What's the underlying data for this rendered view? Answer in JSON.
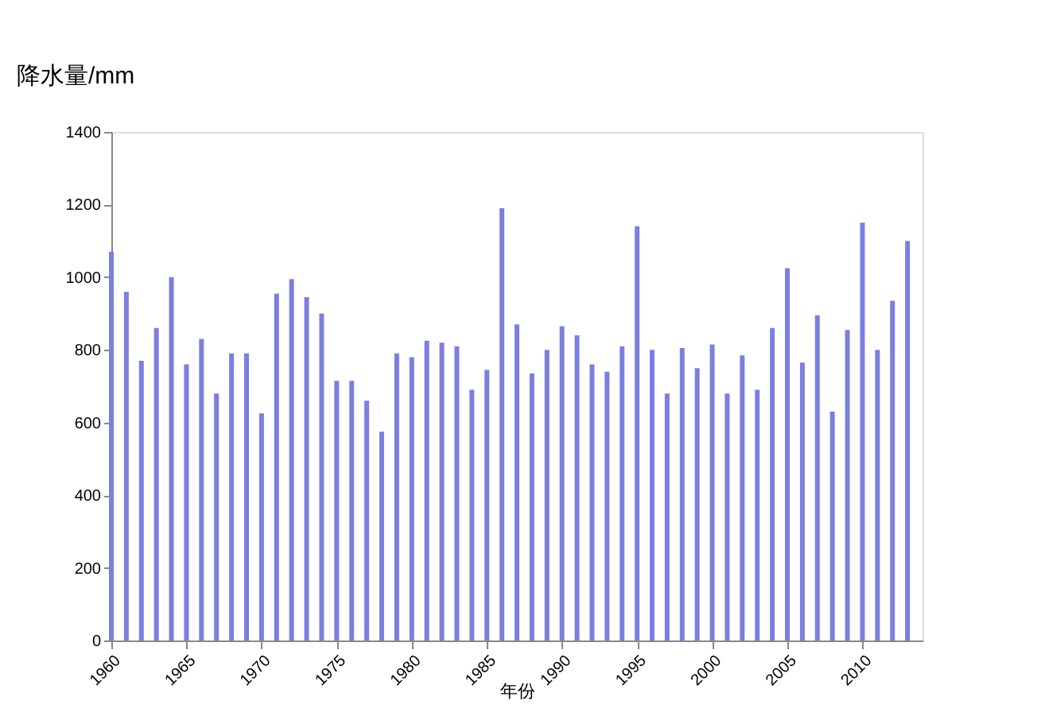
{
  "chart_data": {
    "type": "bar",
    "xlabel": "年份",
    "ylabel": "降水量/mm",
    "color": "#7b7fe0",
    "x": [
      1960,
      1961,
      1962,
      1963,
      1964,
      1965,
      1966,
      1967,
      1968,
      1969,
      1970,
      1971,
      1972,
      1973,
      1974,
      1975,
      1976,
      1977,
      1978,
      1979,
      1980,
      1981,
      1982,
      1983,
      1984,
      1985,
      1986,
      1987,
      1988,
      1989,
      1990,
      1991,
      1992,
      1993,
      1994,
      1995,
      1996,
      1997,
      1998,
      1999,
      2000,
      2001,
      2002,
      2003,
      2004,
      2005,
      2006,
      2007,
      2008,
      2009,
      2010,
      2011,
      2012,
      2013
    ],
    "values": [
      1070,
      960,
      770,
      860,
      1000,
      760,
      830,
      680,
      790,
      790,
      625,
      955,
      995,
      945,
      900,
      715,
      715,
      660,
      575,
      790,
      780,
      825,
      820,
      810,
      690,
      745,
      1190,
      870,
      735,
      800,
      865,
      840,
      760,
      740,
      810,
      1140,
      800,
      680,
      805,
      750,
      815,
      680,
      785,
      690,
      860,
      1025,
      765,
      895,
      630,
      855,
      1150,
      800,
      935,
      1100
    ],
    "xlim": [
      1960,
      2014
    ],
    "xticks": [
      1960,
      1965,
      1970,
      1975,
      1980,
      1985,
      1990,
      1995,
      2000,
      2005,
      2010
    ],
    "ylim": [
      0,
      1400
    ],
    "yticks": [
      0,
      200,
      400,
      600,
      800,
      1000,
      1200,
      1400
    ],
    "grid": false
  }
}
